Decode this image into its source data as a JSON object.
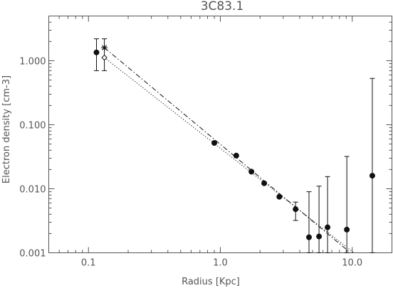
{
  "chart_data": {
    "type": "scatter",
    "title": "3C83.1",
    "xlabel": "Radius [Kpc]",
    "ylabel": "Electron density [cm-3]",
    "xscale": "log",
    "yscale": "log",
    "xlim": [
      0.05,
      20
    ],
    "ylim": [
      0.001,
      5
    ],
    "grid": false,
    "x_ticks": [
      {
        "value": 0.1,
        "label": "0.1"
      },
      {
        "value": 1.0,
        "label": "1.0"
      },
      {
        "value": 10.0,
        "label": "10.0"
      }
    ],
    "y_ticks": [
      {
        "value": 0.001,
        "label": "0.001"
      },
      {
        "value": 0.01,
        "label": "0.010"
      },
      {
        "value": 0.1,
        "label": "0.100"
      },
      {
        "value": 1.0,
        "label": "1.000"
      }
    ],
    "series": [
      {
        "marker": "filled-circle",
        "points": [
          {
            "x": 0.115,
            "y": 1.35,
            "y_low": 0.7,
            "y_high": 2.2
          },
          {
            "x": 0.9,
            "y": 0.052
          },
          {
            "x": 1.32,
            "y": 0.033
          },
          {
            "x": 1.72,
            "y": 0.0185
          },
          {
            "x": 2.15,
            "y": 0.0122
          },
          {
            "x": 2.8,
            "y": 0.0075
          },
          {
            "x": 3.72,
            "y": 0.0048,
            "y_low": 0.0032,
            "y_high": 0.0062
          },
          {
            "x": 4.7,
            "y": 0.00175,
            "y_low": 0.001,
            "y_high": 0.009
          },
          {
            "x": 5.6,
            "y": 0.0018,
            "y_low": 0.001,
            "y_high": 0.011
          },
          {
            "x": 6.5,
            "y": 0.0025,
            "y_low": 0.001,
            "y_high": 0.0155
          },
          {
            "x": 9.1,
            "y": 0.0023,
            "y_low": 0.001,
            "y_high": 0.032
          },
          {
            "x": 14.2,
            "y": 0.016,
            "y_low": 0.001,
            "y_high": 0.53
          }
        ]
      },
      {
        "marker": "asterisk",
        "points": [
          {
            "x": 0.132,
            "y": 1.6,
            "y_low": 0.7,
            "y_high": 2.2
          }
        ]
      },
      {
        "marker": "open-diamond",
        "points": [
          {
            "x": 0.132,
            "y": 1.12
          }
        ]
      }
    ],
    "fit_lines": [
      {
        "style": "dash-dot",
        "x": [
          0.132,
          9.7
        ],
        "y": [
          1.6,
          0.001
        ]
      },
      {
        "style": "dotted",
        "x": [
          0.132,
          10.3
        ],
        "y": [
          1.12,
          0.001
        ]
      }
    ]
  }
}
